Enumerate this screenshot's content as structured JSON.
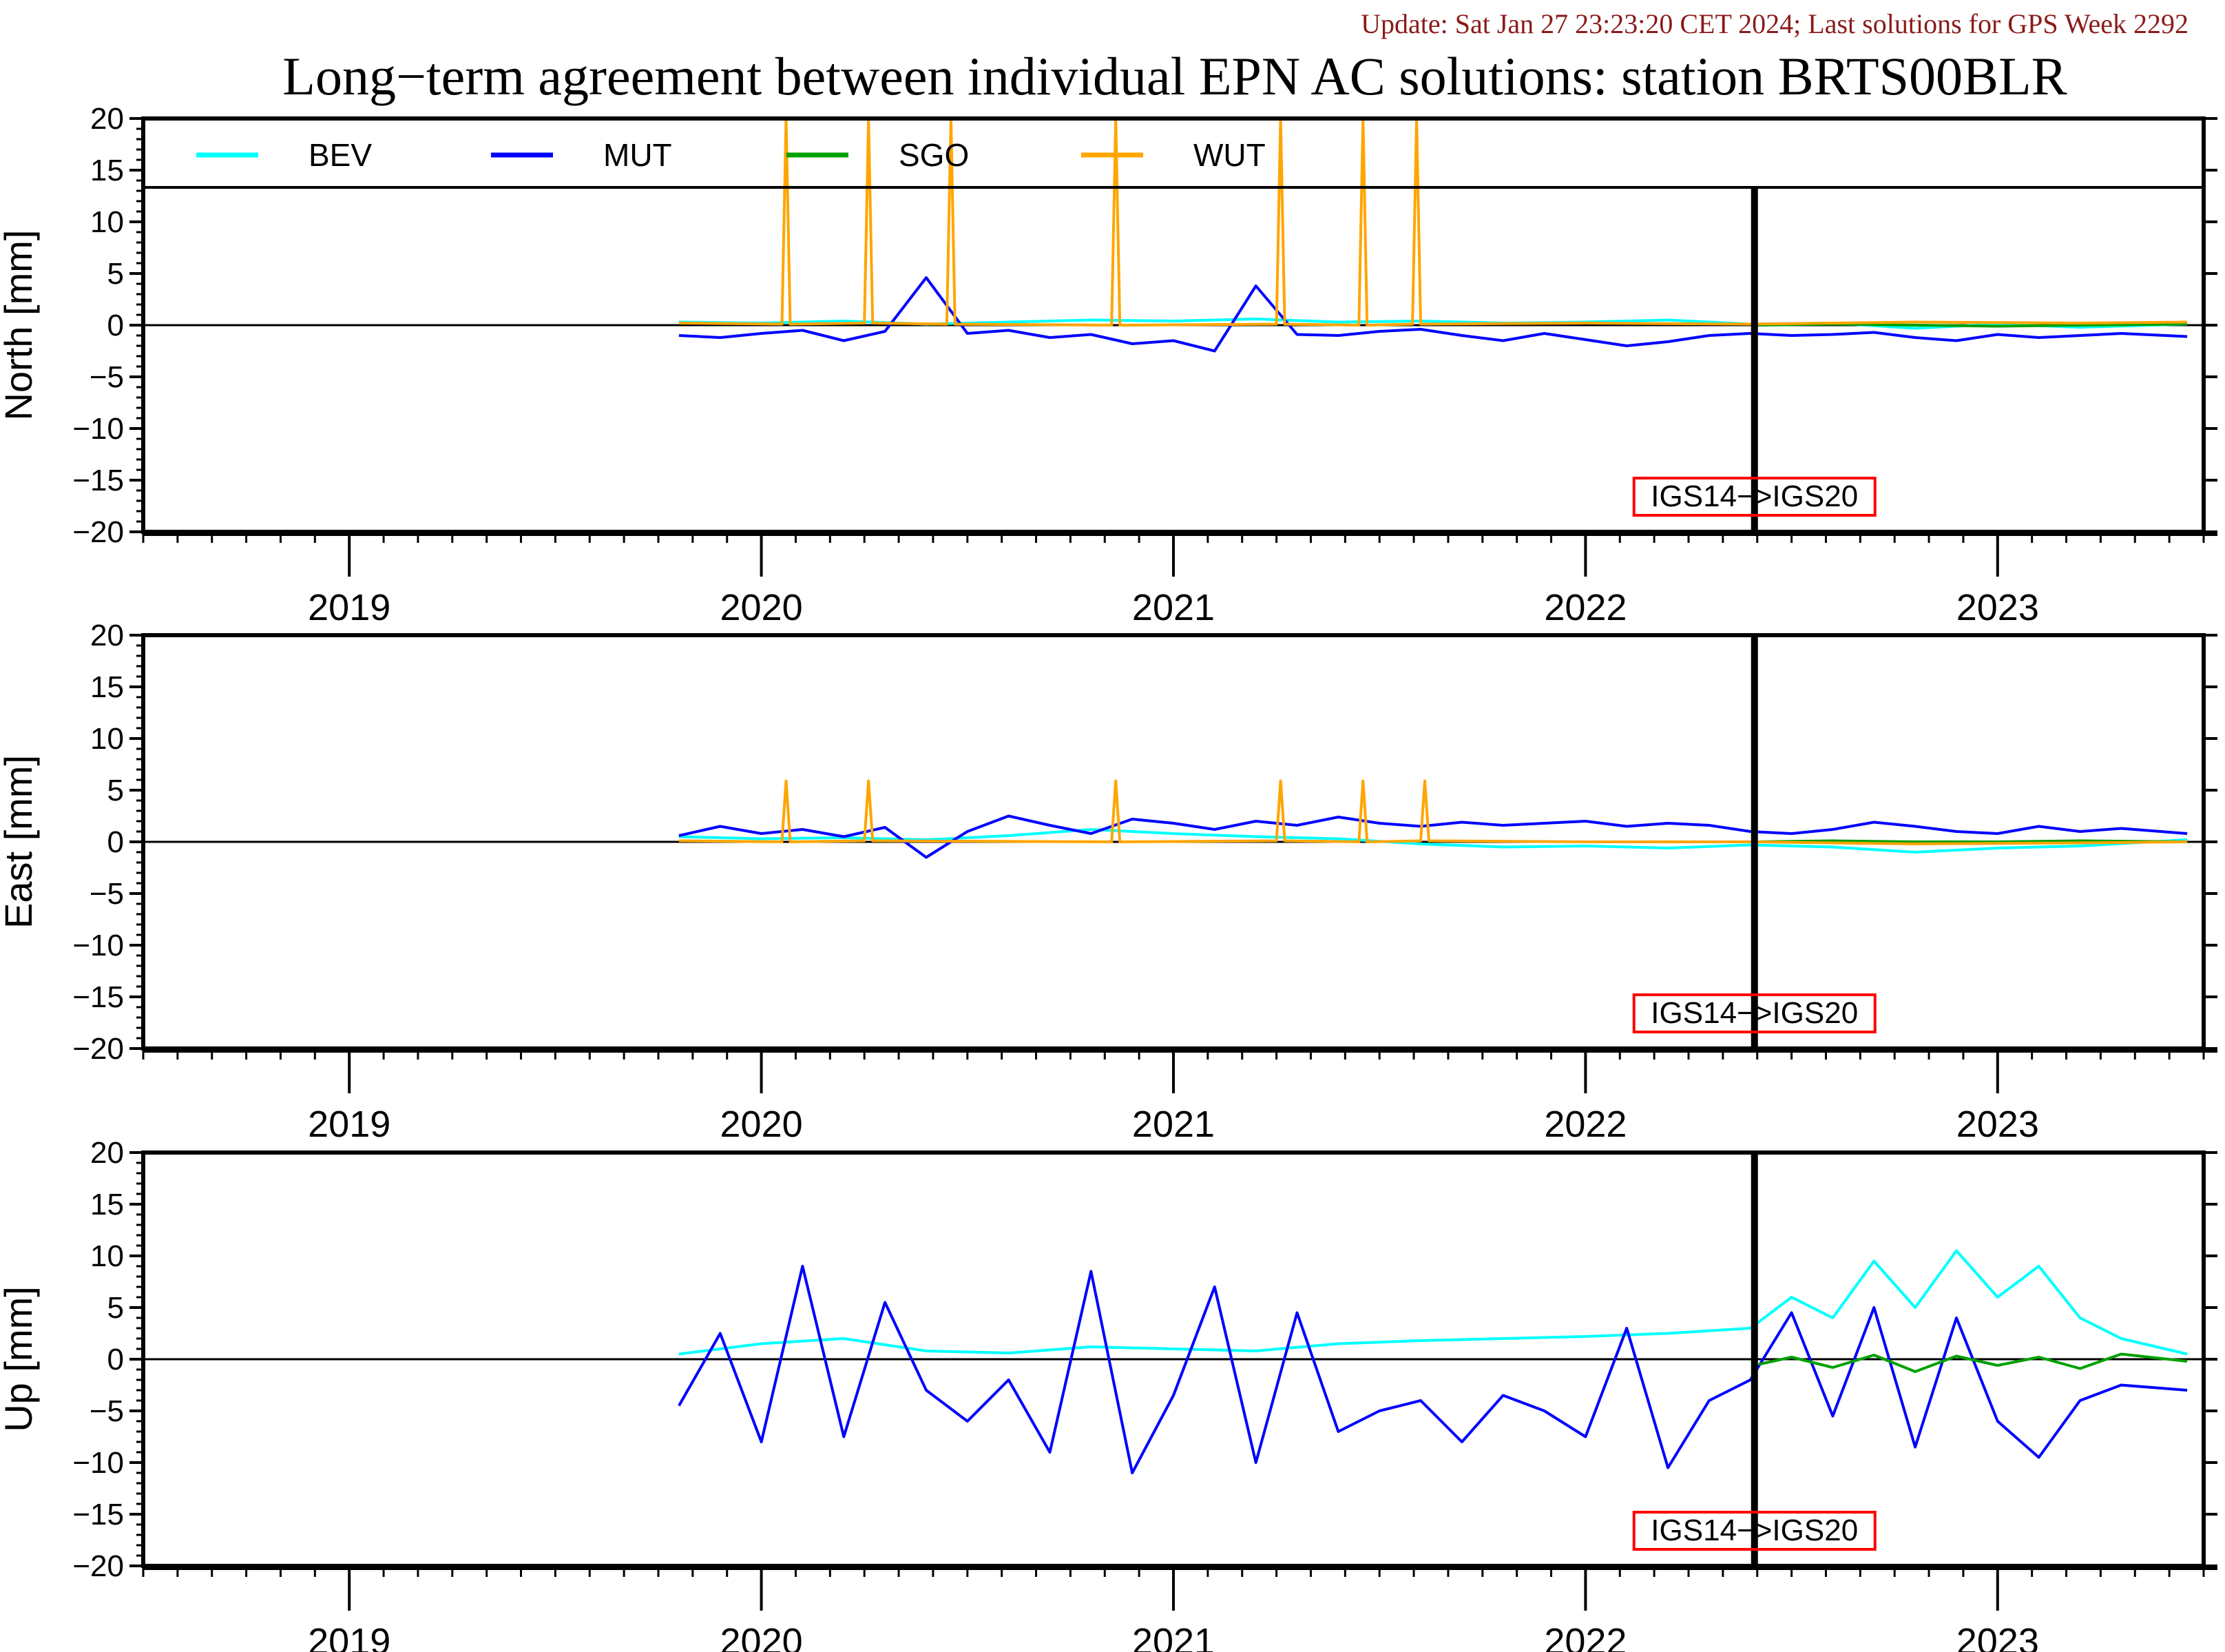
{
  "header": {
    "update_text": "Update: Sat Jan 27 23:23:20 CET 2024; Last solutions for GPS Week 2292",
    "title": "Long−term agreement between individual EPN AC solutions: station BRTS00BLR"
  },
  "legend": [
    {
      "name": "BEV",
      "color": "#00FFFF"
    },
    {
      "name": "MUT",
      "color": "#0000FF"
    },
    {
      "name": "SGO",
      "color": "#00A000"
    },
    {
      "name": "WUT",
      "color": "#FFA500"
    }
  ],
  "annotation": "IGS14−>IGS20",
  "chart_data": [
    {
      "type": "line",
      "ylabel": "North [mm]",
      "ylim": [
        -20,
        20
      ],
      "yticks": [
        20,
        15,
        10,
        5,
        0,
        -5,
        -10,
        -15,
        -20
      ],
      "xlim": [
        2018.5,
        2023.5
      ],
      "xtick_labels": [
        "2019",
        "2020",
        "2021",
        "2022",
        "2023"
      ],
      "frame_change_epoch": 2022.41,
      "series": [
        {
          "name": "BEV",
          "x": [
            2019.8,
            2020.0,
            2020.2,
            2020.4,
            2020.6,
            2020.8,
            2021.0,
            2021.2,
            2021.4,
            2021.6,
            2021.8,
            2022.0,
            2022.2,
            2022.4,
            2022.6,
            2022.8,
            2023.0,
            2023.2,
            2023.46
          ],
          "y": [
            0.3,
            0.2,
            0.4,
            0.1,
            0.3,
            0.5,
            0.4,
            0.6,
            0.3,
            0.4,
            0.2,
            0.3,
            0.5,
            0.1,
            0.2,
            -0.3,
            0.1,
            -0.2,
            0.1
          ]
        },
        {
          "name": "MUT",
          "x": [
            2019.8,
            2019.9,
            2020.0,
            2020.1,
            2020.2,
            2020.3,
            2020.4,
            2020.5,
            2020.6,
            2020.7,
            2020.8,
            2020.9,
            2021.0,
            2021.1,
            2021.2,
            2021.3,
            2021.4,
            2021.5,
            2021.6,
            2021.7,
            2021.8,
            2021.9,
            2022.0,
            2022.1,
            2022.2,
            2022.3,
            2022.4,
            2022.5,
            2022.6,
            2022.7,
            2022.8,
            2022.9,
            2023.0,
            2023.1,
            2023.2,
            2023.3,
            2023.46
          ],
          "y": [
            -1.0,
            -1.2,
            -0.8,
            -0.5,
            -1.5,
            -0.6,
            4.6,
            -0.8,
            -0.5,
            -1.2,
            -0.9,
            -1.8,
            -1.5,
            -2.5,
            3.8,
            -0.9,
            -1.0,
            -0.6,
            -0.4,
            -1.0,
            -1.5,
            -0.8,
            -1.4,
            -2.0,
            -1.6,
            -1.0,
            -0.8,
            -1.0,
            -0.9,
            -0.7,
            -1.2,
            -1.5,
            -0.9,
            -1.2,
            -1.0,
            -0.8,
            -1.1
          ]
        },
        {
          "name": "SGO",
          "x": [
            2022.42,
            2022.6,
            2022.8,
            2023.0,
            2023.2,
            2023.46
          ],
          "y": [
            0.0,
            0.1,
            0.0,
            -0.1,
            0.0,
            0.1
          ]
        },
        {
          "name": "WUT",
          "x": [
            2019.8,
            2020.05,
            2020.06,
            2020.07,
            2020.25,
            2020.26,
            2020.27,
            2020.45,
            2020.46,
            2020.47,
            2020.85,
            2020.86,
            2020.87,
            2021.25,
            2021.26,
            2021.27,
            2021.45,
            2021.46,
            2021.47,
            2021.58,
            2021.59,
            2021.6,
            2022.0,
            2022.4,
            2022.8,
            2023.2,
            2023.46
          ],
          "y": [
            0.2,
            0.1,
            20,
            0.1,
            0.2,
            20,
            0.2,
            0.1,
            20,
            0.1,
            0.0,
            20,
            0.0,
            0.1,
            20,
            0.1,
            0.0,
            20,
            0.0,
            0.1,
            20,
            0.1,
            0.2,
            0.1,
            0.3,
            0.2,
            0.3
          ]
        }
      ]
    },
    {
      "type": "line",
      "ylabel": "East [mm]",
      "ylim": [
        -20,
        20
      ],
      "yticks": [
        20,
        15,
        10,
        5,
        0,
        -5,
        -10,
        -15,
        -20
      ],
      "xlim": [
        2018.5,
        2023.5
      ],
      "xtick_labels": [
        "2019",
        "2020",
        "2021",
        "2022",
        "2023"
      ],
      "frame_change_epoch": 2022.41,
      "series": [
        {
          "name": "BEV",
          "x": [
            2019.8,
            2020.0,
            2020.2,
            2020.4,
            2020.6,
            2020.8,
            2021.0,
            2021.2,
            2021.4,
            2021.6,
            2021.8,
            2022.0,
            2022.2,
            2022.4,
            2022.6,
            2022.8,
            2023.0,
            2023.2,
            2023.46
          ],
          "y": [
            0.5,
            0.3,
            0.4,
            0.2,
            0.6,
            1.2,
            0.8,
            0.5,
            0.3,
            -0.2,
            -0.5,
            -0.4,
            -0.6,
            -0.3,
            -0.5,
            -1.0,
            -0.6,
            -0.4,
            0.2
          ]
        },
        {
          "name": "MUT",
          "x": [
            2019.8,
            2019.9,
            2020.0,
            2020.1,
            2020.2,
            2020.3,
            2020.4,
            2020.5,
            2020.6,
            2020.7,
            2020.8,
            2020.9,
            2021.0,
            2021.1,
            2021.2,
            2021.3,
            2021.4,
            2021.5,
            2021.6,
            2021.7,
            2021.8,
            2021.9,
            2022.0,
            2022.1,
            2022.2,
            2022.3,
            2022.4,
            2022.5,
            2022.6,
            2022.7,
            2022.8,
            2022.9,
            2023.0,
            2023.1,
            2023.2,
            2023.3,
            2023.46
          ],
          "y": [
            0.6,
            1.5,
            0.8,
            1.2,
            0.5,
            1.4,
            -1.5,
            1.0,
            2.5,
            1.6,
            0.8,
            2.2,
            1.8,
            1.2,
            2.0,
            1.6,
            2.4,
            1.8,
            1.5,
            1.9,
            1.6,
            1.8,
            2.0,
            1.5,
            1.8,
            1.6,
            1.0,
            0.8,
            1.2,
            1.9,
            1.5,
            1.0,
            0.8,
            1.5,
            1.0,
            1.3,
            0.8
          ]
        },
        {
          "name": "SGO",
          "x": [
            2022.42,
            2022.6,
            2022.8,
            2023.0,
            2023.2,
            2023.46
          ],
          "y": [
            0.0,
            0.1,
            0.0,
            0.0,
            0.1,
            0.0
          ]
        },
        {
          "name": "WUT",
          "x": [
            2019.8,
            2020.05,
            2020.06,
            2020.07,
            2020.25,
            2020.26,
            2020.27,
            2020.85,
            2020.86,
            2020.87,
            2021.25,
            2021.26,
            2021.27,
            2021.45,
            2021.46,
            2021.47,
            2021.6,
            2021.61,
            2021.62,
            2022.0,
            2022.4,
            2022.8,
            2023.2,
            2023.46
          ],
          "y": [
            0.1,
            0.0,
            5.9,
            0.0,
            0.1,
            5.9,
            0.1,
            0.0,
            5.9,
            0.0,
            0.1,
            5.9,
            0.1,
            0.0,
            5.9,
            0.0,
            0.1,
            5.9,
            0.1,
            0.0,
            0.0,
            -0.2,
            -0.1,
            0.0
          ]
        }
      ]
    },
    {
      "type": "line",
      "ylabel": "Up [mm]",
      "ylim": [
        -20,
        20
      ],
      "yticks": [
        20,
        15,
        10,
        5,
        0,
        -5,
        -10,
        -15,
        -20
      ],
      "xlim": [
        2018.5,
        2023.5
      ],
      "xtick_labels": [
        "2019",
        "2020",
        "2021",
        "2022",
        "2023"
      ],
      "frame_change_epoch": 2022.41,
      "series": [
        {
          "name": "BEV",
          "x": [
            2019.8,
            2020.0,
            2020.2,
            2020.4,
            2020.6,
            2020.8,
            2021.0,
            2021.2,
            2021.4,
            2021.6,
            2021.8,
            2022.0,
            2022.2,
            2022.4,
            2022.5,
            2022.6,
            2022.7,
            2022.8,
            2022.9,
            2023.0,
            2023.1,
            2023.2,
            2023.3,
            2023.46
          ],
          "y": [
            0.5,
            1.5,
            2.0,
            0.8,
            0.6,
            1.2,
            1.0,
            0.8,
            1.5,
            1.8,
            2.0,
            2.2,
            2.5,
            3.0,
            6.0,
            4.0,
            9.5,
            5.0,
            10.5,
            6.0,
            9.0,
            4.0,
            2.0,
            0.5
          ]
        },
        {
          "name": "MUT",
          "x": [
            2019.8,
            2019.9,
            2020.0,
            2020.1,
            2020.2,
            2020.3,
            2020.4,
            2020.5,
            2020.6,
            2020.7,
            2020.8,
            2020.9,
            2021.0,
            2021.1,
            2021.2,
            2021.3,
            2021.4,
            2021.5,
            2021.6,
            2021.7,
            2021.8,
            2021.9,
            2022.0,
            2022.1,
            2022.2,
            2022.3,
            2022.4,
            2022.5,
            2022.6,
            2022.7,
            2022.8,
            2022.9,
            2023.0,
            2023.1,
            2023.2,
            2023.3,
            2023.46
          ],
          "y": [
            -4.5,
            2.5,
            -8.0,
            9.0,
            -7.5,
            5.5,
            -3.0,
            -6.0,
            -2.0,
            -9.0,
            8.5,
            -11.0,
            -3.5,
            7.0,
            -10.0,
            4.5,
            -7.0,
            -5.0,
            -4.0,
            -8.0,
            -3.5,
            -5.0,
            -7.5,
            3.0,
            -10.5,
            -4.0,
            -2.0,
            4.5,
            -5.5,
            5.0,
            -8.5,
            4.0,
            -6.0,
            -9.5,
            -4.0,
            -2.5,
            -3.0
          ]
        },
        {
          "name": "SGO",
          "x": [
            2022.42,
            2022.5,
            2022.6,
            2022.7,
            2022.8,
            2022.9,
            2023.0,
            2023.1,
            2023.2,
            2023.3,
            2023.46
          ],
          "y": [
            -0.5,
            0.2,
            -0.8,
            0.4,
            -1.2,
            0.3,
            -0.6,
            0.2,
            -0.9,
            0.5,
            -0.2
          ]
        },
        {
          "name": "WUT",
          "x": [],
          "y": []
        }
      ]
    }
  ]
}
